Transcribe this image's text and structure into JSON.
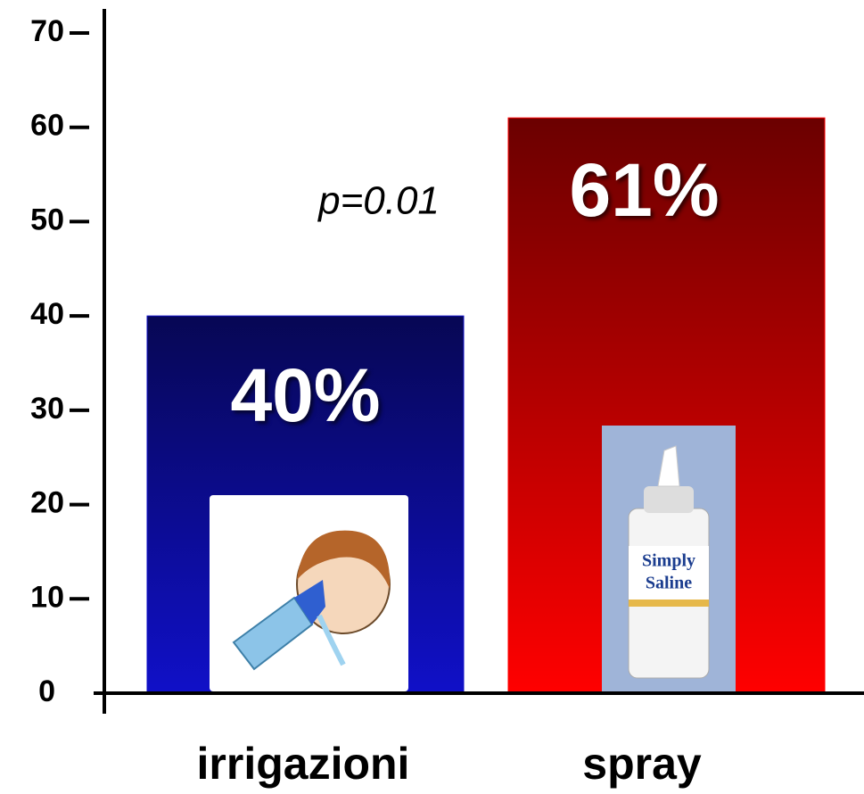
{
  "chart_data": {
    "type": "bar",
    "categories": [
      "irrigazioni",
      "spray"
    ],
    "values": [
      40,
      61
    ],
    "value_labels": [
      "40%",
      "61%"
    ],
    "colors": [
      "#1010c8",
      "#ff0000"
    ],
    "annotation": "p=0.01",
    "ylim": [
      0,
      70
    ],
    "yticks": [
      0,
      10,
      20,
      30,
      40,
      50,
      60,
      70
    ]
  }
}
